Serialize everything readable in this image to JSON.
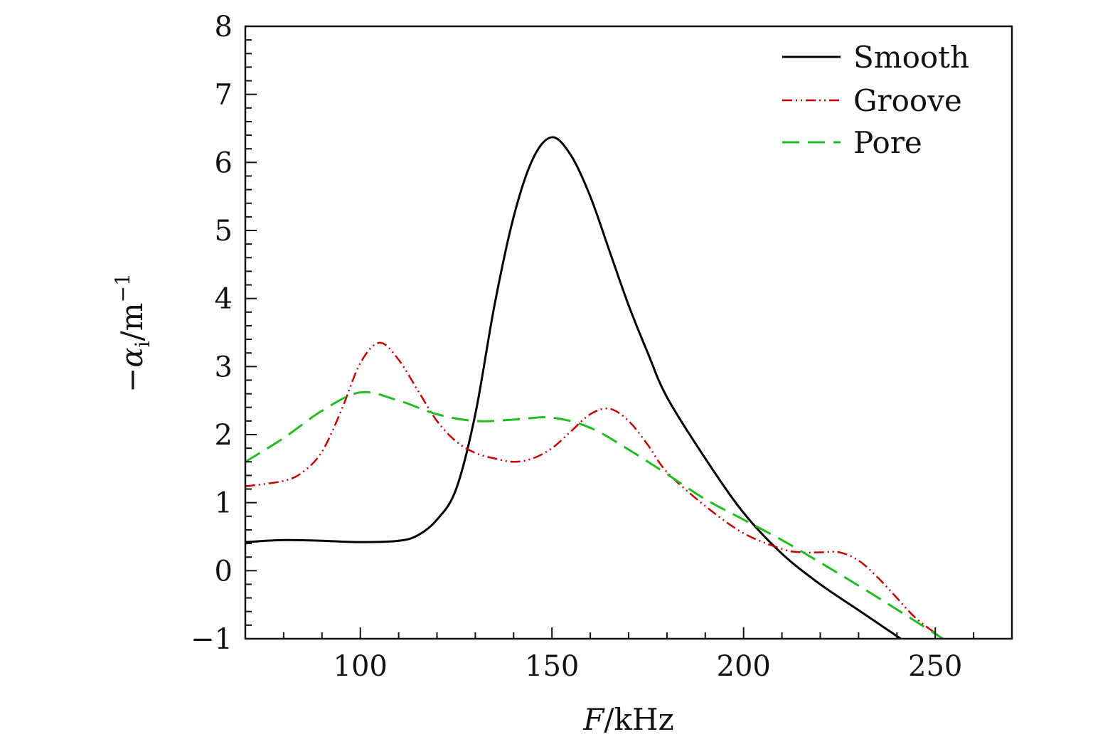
{
  "chart_data": {
    "type": "line",
    "title": "",
    "xlabel": "F/kHz",
    "xlabel_parts": {
      "var": "F",
      "unit": "/kHz"
    },
    "ylabel": "−αi/m−1",
    "ylabel_parts": {
      "prefix": "−α",
      "sub": "i",
      "mid": "/m",
      "sup": "−1"
    },
    "xlim": [
      70,
      270
    ],
    "ylim": [
      -1,
      8
    ],
    "xticks": [
      100,
      150,
      200,
      250
    ],
    "xtick_labels": [
      "100",
      "150",
      "200",
      "250"
    ],
    "yticks": [
      -1,
      0,
      1,
      2,
      3,
      4,
      5,
      6,
      7,
      8
    ],
    "ytick_labels": [
      "−1",
      "0",
      "1",
      "2",
      "3",
      "4",
      "5",
      "6",
      "7",
      "8"
    ],
    "x_minor_step": 10,
    "y_minor_step": 0.2,
    "grid": false,
    "legend_position": "top-right",
    "series": [
      {
        "name": "Smooth",
        "color": "#000000",
        "style": "solid",
        "x": [
          70,
          80,
          90,
          100,
          110,
          115,
          120,
          125,
          130,
          135,
          140,
          145,
          150,
          155,
          160,
          165,
          170,
          175,
          180,
          190,
          200,
          210,
          220,
          230,
          241
        ],
        "y": [
          0.42,
          0.45,
          0.44,
          0.42,
          0.44,
          0.52,
          0.75,
          1.2,
          2.3,
          3.9,
          5.2,
          6.05,
          6.37,
          6.1,
          5.5,
          4.7,
          3.9,
          3.2,
          2.55,
          1.65,
          0.85,
          0.25,
          -0.2,
          -0.58,
          -1.0
        ]
      },
      {
        "name": "Groove",
        "color": "#c00000",
        "style": "dash-dot-dot",
        "x": [
          70,
          80,
          85,
          90,
          95,
          100,
          105,
          110,
          115,
          120,
          125,
          130,
          135,
          140,
          145,
          150,
          155,
          160,
          165,
          170,
          175,
          180,
          190,
          200,
          210,
          215,
          220,
          225,
          230,
          235,
          240,
          245,
          252
        ],
        "y": [
          1.24,
          1.32,
          1.45,
          1.75,
          2.35,
          3.05,
          3.35,
          3.1,
          2.65,
          2.2,
          1.9,
          1.73,
          1.65,
          1.6,
          1.65,
          1.8,
          2.05,
          2.3,
          2.38,
          2.2,
          1.85,
          1.45,
          0.95,
          0.55,
          0.32,
          0.27,
          0.27,
          0.27,
          0.15,
          -0.1,
          -0.4,
          -0.7,
          -1.0
        ]
      },
      {
        "name": "Pore",
        "color": "#22bb22",
        "style": "dashed",
        "x": [
          70,
          80,
          90,
          100,
          110,
          120,
          130,
          140,
          150,
          160,
          170,
          180,
          190,
          200,
          210,
          220,
          230,
          240,
          252
        ],
        "y": [
          1.6,
          1.95,
          2.35,
          2.62,
          2.5,
          2.3,
          2.2,
          2.22,
          2.25,
          2.1,
          1.78,
          1.42,
          1.05,
          0.75,
          0.45,
          0.12,
          -0.22,
          -0.57,
          -1.0
        ]
      }
    ]
  }
}
